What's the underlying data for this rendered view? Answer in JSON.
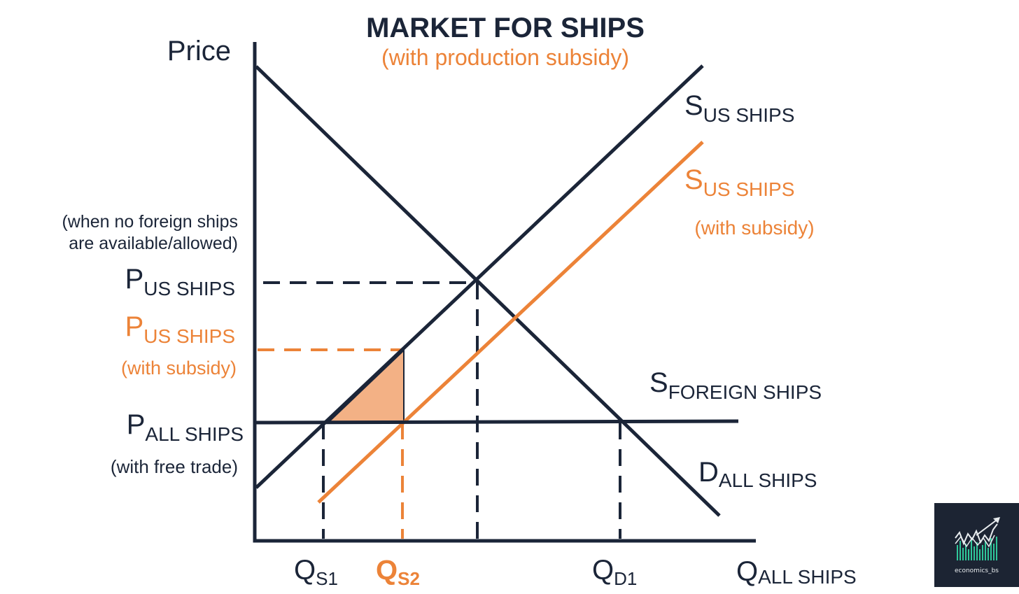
{
  "title": "MARKET FOR SHIPS",
  "subtitle": "(with production subsidy)",
  "axes": {
    "y_label": "Price",
    "x_label_main": "Q",
    "x_label_sub": "ALL SHIPS"
  },
  "curves": {
    "supply_us": {
      "main": "S",
      "sub": "US SHIPS"
    },
    "supply_us_subsidy": {
      "main": "S",
      "sub": "US SHIPS",
      "note": "(with subsidy)"
    },
    "supply_foreign": {
      "main": "S",
      "sub": "FOREIGN SHIPS"
    },
    "demand_all": {
      "main": "D",
      "sub": "ALL SHIPS"
    }
  },
  "price_labels": {
    "no_foreign_note": [
      "(when no foreign ships",
      "are available/allowed)"
    ],
    "p_us": {
      "main": "P",
      "sub": "US SHIPS"
    },
    "p_us_subsidy": {
      "main": "P",
      "sub": "US SHIPS",
      "note": "(with subsidy)"
    },
    "p_all": {
      "main": "P",
      "sub": "ALL SHIPS",
      "note": "(with free trade)"
    }
  },
  "quantity_labels": {
    "qs1": {
      "main": "Q",
      "sub": "S1"
    },
    "qs2": {
      "main": "Q",
      "sub": "S2"
    },
    "qd1": {
      "main": "Q",
      "sub": "D1"
    }
  },
  "logo": {
    "text": "economics_bs"
  },
  "colors": {
    "dark": "#1b2538",
    "orange": "#ec8338",
    "shade": "#f3b185",
    "logo_bg": "#1c2433"
  }
}
